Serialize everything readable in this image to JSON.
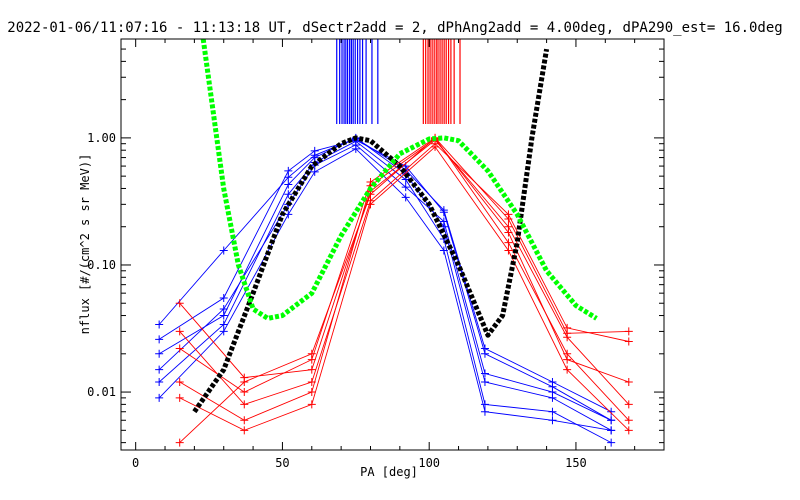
{
  "chart_data": {
    "type": "line",
    "title": "2022-01-06/11:07:16 - 11:13:18 UT, dSectr2add = 2, dPhAng2add = 4.00deg, dPA290_est=  16.0deg",
    "xlabel": "PA [deg]",
    "ylabel": "nflux [#/(cm^2 s sr MeV)]",
    "xlim": [
      -5,
      180
    ],
    "ylim": [
      0.0035,
      6.0
    ],
    "yscale": "log",
    "xticks": [
      0,
      50,
      100,
      150
    ],
    "xtick_labels": [
      "0",
      "50",
      "100",
      "150"
    ],
    "yticks": [
      0.01,
      0.1,
      1.0
    ],
    "ytick_labels": [
      "0.01",
      "0.10",
      "1.00"
    ],
    "grid": false,
    "legend": "none",
    "colors": {
      "blue": "#0000ff",
      "red": "#ff0000",
      "black": "#000000",
      "green": "#00ff00"
    },
    "series": [
      {
        "color": "blue",
        "style": "line+plus",
        "x": [
          8,
          30,
          52,
          61,
          75,
          92,
          105,
          119,
          142,
          162
        ],
        "curves": [
          [
            0.02,
            0.04,
            0.43,
            0.7,
            1.0,
            0.52,
            0.2,
            0.012,
            0.009,
            0.005
          ],
          [
            0.026,
            0.055,
            0.55,
            0.79,
            0.96,
            0.6,
            0.26,
            0.02,
            0.011,
            0.006
          ],
          [
            0.012,
            0.034,
            0.36,
            0.64,
            0.94,
            0.47,
            0.16,
            0.008,
            0.007,
            0.004
          ],
          [
            0.015,
            0.045,
            0.3,
            0.61,
            0.88,
            0.41,
            0.22,
            0.014,
            0.01,
            0.006
          ],
          [
            0.009,
            0.03,
            0.25,
            0.54,
            0.82,
            0.34,
            0.13,
            0.007,
            0.006,
            0.005
          ],
          [
            0.034,
            0.13,
            0.49,
            0.73,
            0.99,
            0.56,
            0.27,
            0.022,
            0.012,
            0.007
          ]
        ],
        "vlines_x": [
          68.5,
          69.5,
          70.3,
          71.0,
          71.6,
          72.2,
          72.9,
          73.5,
          74.1,
          74.8,
          75.6,
          76.4,
          77.3,
          78.5,
          80.5,
          82.5
        ]
      },
      {
        "color": "red",
        "style": "line+plus",
        "x": [
          15,
          37,
          60,
          80,
          102,
          127,
          147,
          168
        ],
        "curves": [
          [
            0.05,
            0.013,
            0.015,
            0.38,
            0.96,
            0.2,
            0.027,
            0.008
          ],
          [
            0.022,
            0.01,
            0.018,
            0.45,
            1.0,
            0.15,
            0.02,
            0.006
          ],
          [
            0.03,
            0.008,
            0.012,
            0.32,
            0.9,
            0.25,
            0.032,
            0.025
          ],
          [
            0.012,
            0.006,
            0.01,
            0.42,
            0.98,
            0.18,
            0.018,
            0.012
          ],
          [
            0.009,
            0.005,
            0.008,
            0.3,
            0.85,
            0.13,
            0.015,
            0.005
          ],
          [
            0.004,
            0.012,
            0.02,
            0.36,
            1.0,
            0.23,
            0.029,
            0.03
          ]
        ],
        "vlines_x": [
          98.0,
          98.8,
          99.6,
          100.3,
          101.0,
          101.7,
          102.4,
          103.0,
          103.7,
          104.4,
          105.1,
          105.8,
          106.6,
          107.4,
          108.5,
          110.5
        ]
      },
      {
        "color": "black",
        "style": "thick-dashed",
        "x": [
          20,
          30,
          40,
          50,
          60,
          70,
          75,
          80,
          90,
          100,
          110,
          120,
          125,
          130,
          135,
          140
        ],
        "y": [
          0.007,
          0.015,
          0.06,
          0.25,
          0.6,
          0.9,
          1.0,
          0.95,
          0.6,
          0.3,
          0.1,
          0.028,
          0.04,
          0.15,
          1.0,
          5.0
        ]
      },
      {
        "color": "green",
        "style": "thick-dashed",
        "x": [
          23,
          30,
          35,
          40,
          45,
          50,
          60,
          70,
          80,
          90,
          100,
          105,
          110,
          120,
          130,
          140,
          150,
          157
        ],
        "y": [
          6.0,
          0.4,
          0.1,
          0.045,
          0.038,
          0.04,
          0.06,
          0.17,
          0.4,
          0.75,
          0.98,
          1.0,
          0.95,
          0.55,
          0.25,
          0.09,
          0.048,
          0.038
        ]
      }
    ]
  }
}
